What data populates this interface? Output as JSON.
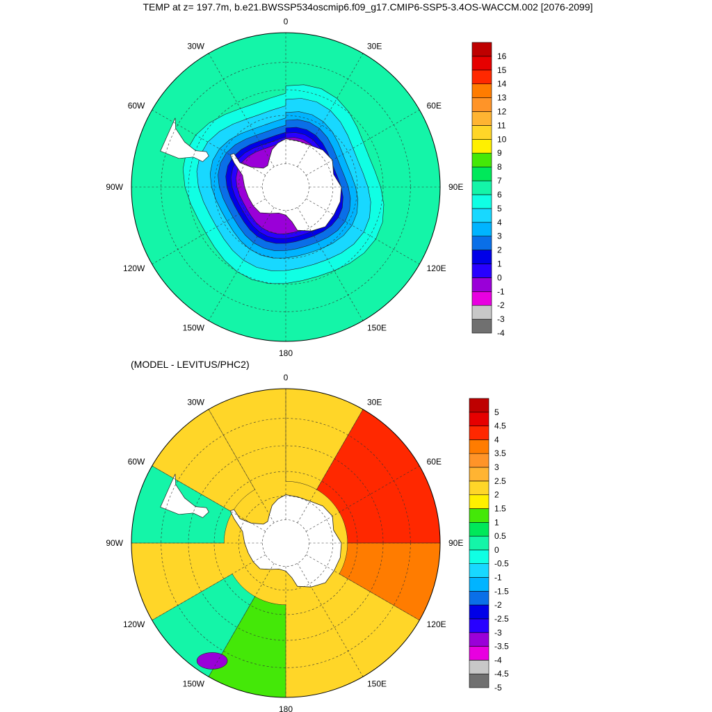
{
  "title": "TEMP at z= 197.7m, b.e21.BWSSP534oscmip6.f09_g17.CMIP6-SSP5-3.4OS-WACCM.002 [2076-2099]",
  "chart_data": [
    {
      "type": "heatmap",
      "projection": "south polar stereographic",
      "title": "TEMP at z= 197.7m, b.e21.BWSSP534oscmip6.f09_g17.CMIP6-SSP5-3.4OS-WACCM.002 [2076-2099]",
      "variable": "TEMP",
      "depth": "197.7m",
      "lon_labels": [
        "0",
        "30E",
        "60E",
        "90E",
        "120E",
        "150E",
        "180",
        "150W",
        "120W",
        "90W",
        "60W",
        "30W"
      ],
      "colorbar": {
        "levels": [
          "-4",
          "-3",
          "-2",
          "-1",
          "0",
          "1",
          "2",
          "3",
          "4",
          "5",
          "6",
          "7",
          "8",
          "9",
          "10",
          "11",
          "12",
          "13",
          "14",
          "15",
          "16"
        ],
        "colors": [
          "#707070",
          "#c8c8c8",
          "#e800e0",
          "#9a00d8",
          "#2800ff",
          "#0000e8",
          "#0a6fe8",
          "#00b4ff",
          "#18d8ff",
          "#10ffe4",
          "#14f5a8",
          "#00e85a",
          "#44e808",
          "#fff000",
          "#ffd628",
          "#ffb432",
          "#ff9428",
          "#ff7c00",
          "#ff2800",
          "#e60000",
          "#be0000"
        ]
      },
      "zones_by_latitude": [
        {
          "lat": -50,
          "value": 5.5
        },
        {
          "lat": -55,
          "value": 4.5
        },
        {
          "lat": -60,
          "value": 3.5
        },
        {
          "lat": -63,
          "value": 2.5
        },
        {
          "lat": -66,
          "value": 1.5
        },
        {
          "lat": -68,
          "value": 0.5
        },
        {
          "lat": -70,
          "value": -0.5
        }
      ]
    },
    {
      "type": "heatmap",
      "projection": "south polar stereographic",
      "title": "(MODEL - LEVITUS/PHC2)",
      "lon_labels": [
        "0",
        "30E",
        "60E",
        "90E",
        "120E",
        "150E",
        "180",
        "150W",
        "120W",
        "90W",
        "60W",
        "30W"
      ],
      "colorbar": {
        "levels": [
          "-5",
          "-4.5",
          "-4",
          "-3.5",
          "-3",
          "-2.5",
          "-2",
          "-1.5",
          "-1",
          "-0.5",
          "0",
          "0.5",
          "1",
          "1.5",
          "2",
          "2.5",
          "3",
          "3.5",
          "4",
          "4.5",
          "5"
        ],
        "colors": [
          "#707070",
          "#c8c8c8",
          "#e800e0",
          "#9a00d8",
          "#2800ff",
          "#0000e8",
          "#0a6fe8",
          "#00b4ff",
          "#18d8ff",
          "#10ffe4",
          "#14f5a8",
          "#00e85a",
          "#44e808",
          "#fff000",
          "#ffd628",
          "#ffb432",
          "#ff9428",
          "#ff7c00",
          "#ff2800",
          "#e60000",
          "#be0000"
        ]
      },
      "regions": [
        {
          "sector": "30E-90E",
          "value": 4.2
        },
        {
          "sector": "90E-120E",
          "value": 3.8
        },
        {
          "sector": "0-30E",
          "value": 2.3
        },
        {
          "sector": "150W-180",
          "value": 1.3
        },
        {
          "sector": "120W-150W",
          "value": 0.3
        },
        {
          "sector": "near 150W",
          "value": -3.2
        },
        {
          "sector": "60W-90W",
          "value": 0.3
        },
        {
          "sector": "30W-60W",
          "value": 2.0
        }
      ]
    }
  ]
}
